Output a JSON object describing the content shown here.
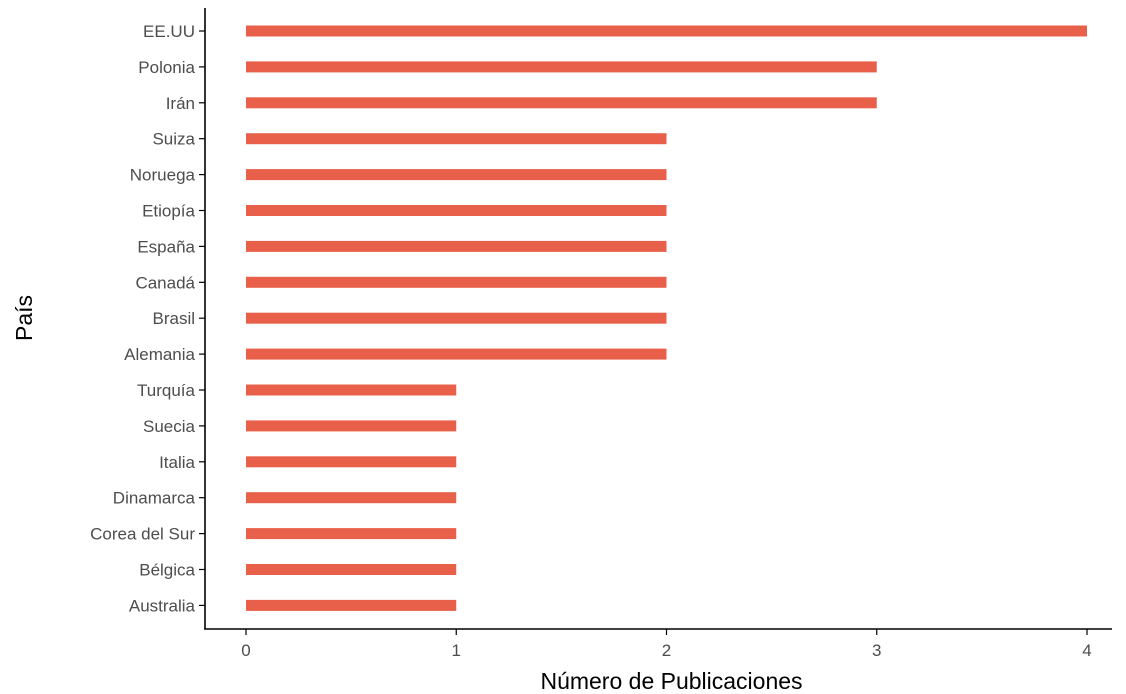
{
  "chart_data": {
    "type": "bar",
    "orientation": "horizontal",
    "title": "",
    "xlabel": "Número de Publicaciones",
    "ylabel": "País",
    "categories": [
      "EE.UU",
      "Polonia",
      "Irán",
      "Suiza",
      "Noruega",
      "Etiopía",
      "España",
      "Canadá",
      "Brasil",
      "Alemania",
      "Turquía",
      "Suecia",
      "Italia",
      "Dinamarca",
      "Corea del Sur",
      "Bélgica",
      "Australia"
    ],
    "values": [
      4,
      3,
      3,
      2,
      2,
      2,
      2,
      2,
      2,
      2,
      1,
      1,
      1,
      1,
      1,
      1,
      1
    ],
    "xlim": [
      0,
      4
    ],
    "xticks": [
      0,
      1,
      2,
      3,
      4
    ],
    "grid": false,
    "legend": "none",
    "bar_color": "#e8604a",
    "axis_color": "#000000",
    "label_color": "#4d4d4d"
  }
}
